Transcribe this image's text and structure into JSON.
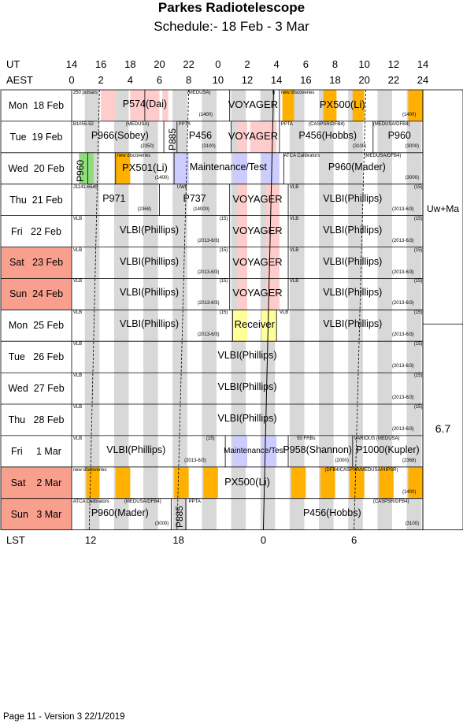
{
  "header": {
    "title": "Parkes Radiotelescope",
    "subtitle": "Schedule:- 18 Feb - 3  Mar"
  },
  "axes": {
    "ut_label": "UT",
    "aest_label": "AEST",
    "lst_label": "LST",
    "ut_ticks": [
      "14",
      "16",
      "18",
      "20",
      "22",
      "0",
      "2",
      "4",
      "6",
      "8",
      "10",
      "12",
      "14"
    ],
    "aest_ticks": [
      "0",
      "2",
      "4",
      "6",
      "8",
      "10",
      "12",
      "14",
      "16",
      "18",
      "20",
      "22",
      "24"
    ],
    "lst_ticks": [
      "12",
      "18",
      "0",
      "6"
    ]
  },
  "days": [
    {
      "label": "Mon  18 Feb",
      "weekend": false
    },
    {
      "label": "Tue  19 Feb",
      "weekend": false
    },
    {
      "label": "Wed  20 Feb",
      "weekend": false
    },
    {
      "label": "Thu  21 Feb",
      "weekend": false
    },
    {
      "label": "Fri   22 Feb",
      "weekend": false
    },
    {
      "label": "Sat   23 Feb",
      "weekend": true
    },
    {
      "label": "Sun  24 Feb",
      "weekend": true
    },
    {
      "label": "Mon  25 Feb",
      "weekend": false
    },
    {
      "label": "Tue   26 Feb",
      "weekend": false
    },
    {
      "label": "Wed  27 Feb",
      "weekend": false
    },
    {
      "label": "Thu   28 Feb",
      "weekend": false
    },
    {
      "label": "Fri     1 Mar",
      "weekend": false
    },
    {
      "label": "Sat    2 Mar",
      "weekend": true
    },
    {
      "label": "Sun   3 Mar",
      "weekend": true
    }
  ],
  "labels": {
    "p574": "P574(Dai)",
    "voyager": "VOYAGER",
    "px500": "PX500(Li)",
    "p966": "P966(Sobey)",
    "p456": "P456",
    "p456_hobbs": "P456(Hobbs)",
    "p960": "P960",
    "px501": "PX501(Li)",
    "maintenance": "Maintenance/Test",
    "maintenance_fri": "Maintenance/Test",
    "p960_mader": "P960(Mader)",
    "p971": "P971",
    "p737": "P737",
    "vlbi": "VLBI(Phillips)",
    "receiver": "Receiver",
    "p958": "P958(Shannon)",
    "p1000": "P1000(Kupler)",
    "p885": "P885",
    "uwma": "Uw+Ma",
    "sixseven": "6.7"
  },
  "small": {
    "pulsars": "250 pulsars",
    "medusa": "(MEDUSA)",
    "n1400": "(1400)",
    "newdisc": "new discoveries",
    "j": "I)",
    "b": "B1055-52",
    "n2350": "(2350)",
    "ppta": "PPTA",
    "n3100": "(3100)",
    "caspsr": "(CASPSR/DFB4)",
    "medusadfb4": "(MEDUSA/DFB4)",
    "n3000": "(3000)",
    "atca": "ATCA Calibrators",
    "j1141": "J1141-6545",
    "n2368": "(2368)",
    "uwl": "UWL",
    "n14000": "(14000)",
    "vlb": "VLB",
    "n15": "(15)",
    "n2013": "(2013-6/3)",
    "n50frbs": "50 FRBs",
    "various": "VARIOUS (MEDUSA)",
    "n2000": "(2000)",
    "dfb4": "(DFB4/CASPSR/MEDUSA/HIPSR)"
  },
  "footer": "Page 11 - Version 3  22/1/2019"
}
